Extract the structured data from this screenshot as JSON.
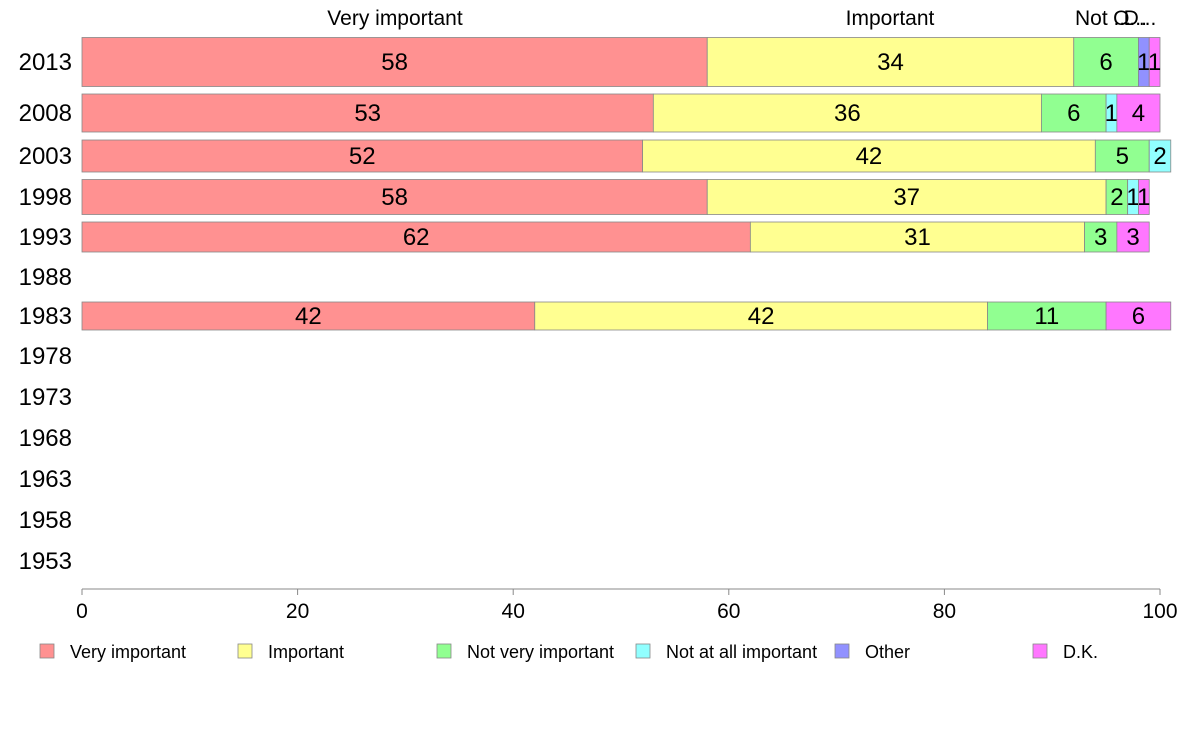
{
  "chart_data": {
    "type": "bar",
    "orientation": "horizontal",
    "stacked": true,
    "categories": [
      "2013",
      "2008",
      "2003",
      "1998",
      "1993",
      "1988",
      "1983",
      "1978",
      "1973",
      "1968",
      "1963",
      "1958",
      "1953"
    ],
    "series": [
      {
        "name": "Very important",
        "color": "#ff9191",
        "values": [
          58,
          53,
          52,
          58,
          62,
          null,
          42,
          null,
          null,
          null,
          null,
          null,
          null
        ]
      },
      {
        "name": "Important",
        "color": "#ffff91",
        "values": [
          34,
          36,
          42,
          37,
          31,
          null,
          42,
          null,
          null,
          null,
          null,
          null,
          null
        ]
      },
      {
        "name": "Not very important",
        "color": "#91ff91",
        "values": [
          6,
          6,
          5,
          2,
          3,
          null,
          11,
          null,
          null,
          null,
          null,
          null,
          null
        ]
      },
      {
        "name": "Not at all important",
        "color": "#91ffff",
        "values": [
          0,
          1,
          2,
          1,
          0,
          null,
          0,
          null,
          null,
          null,
          null,
          null,
          null
        ]
      },
      {
        "name": "Other",
        "color": "#9191ff",
        "values": [
          1,
          0,
          0,
          0,
          0,
          null,
          0,
          null,
          null,
          null,
          null,
          null,
          null
        ]
      },
      {
        "name": "D.K.",
        "color": "#ff77ff",
        "values": [
          1,
          4,
          0,
          1,
          3,
          null,
          6,
          null,
          null,
          null,
          null,
          null,
          null
        ]
      }
    ],
    "top_labels": [
      "Very important",
      "Important",
      "Not ...",
      "O...",
      "D..."
    ],
    "xlim": [
      0,
      100
    ],
    "x_ticks": [
      "0",
      "20",
      "40",
      "60",
      "80",
      "100"
    ],
    "grid": false,
    "legend_position": "bottom"
  }
}
